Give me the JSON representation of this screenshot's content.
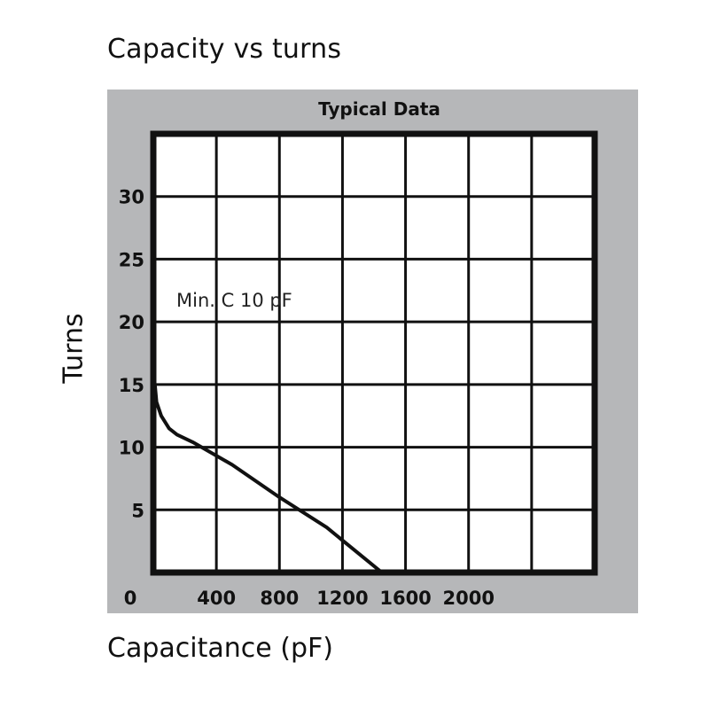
{
  "chart_data": {
    "type": "line",
    "title": "Capacity vs turns",
    "subtitle": "Typical Data",
    "xlabel": "Capacitance (pF)",
    "ylabel": "Turns",
    "xlim": [
      0,
      2800
    ],
    "ylim": [
      0,
      35
    ],
    "x_ticks": [
      0,
      400,
      800,
      1200,
      1600,
      2000
    ],
    "x_tick_labels": [
      "0",
      "400",
      "800",
      "1200",
      "1600",
      "2000"
    ],
    "y_ticks": [
      5,
      10,
      15,
      20,
      25,
      30
    ],
    "y_tick_labels": [
      "5",
      "10",
      "15",
      "20",
      "25",
      "30"
    ],
    "grid": true,
    "annotation": "Min. C 10 pF",
    "series": [
      {
        "points": [
          {
            "x": 10,
            "y": 15
          },
          {
            "x": 20,
            "y": 13.6
          },
          {
            "x": 50,
            "y": 12.5
          },
          {
            "x": 100,
            "y": 11.5
          },
          {
            "x": 150,
            "y": 11.0
          },
          {
            "x": 250,
            "y": 10.4
          },
          {
            "x": 500,
            "y": 8.6
          },
          {
            "x": 800,
            "y": 6.0
          },
          {
            "x": 1100,
            "y": 3.6
          },
          {
            "x": 1450,
            "y": 0
          }
        ]
      }
    ]
  }
}
